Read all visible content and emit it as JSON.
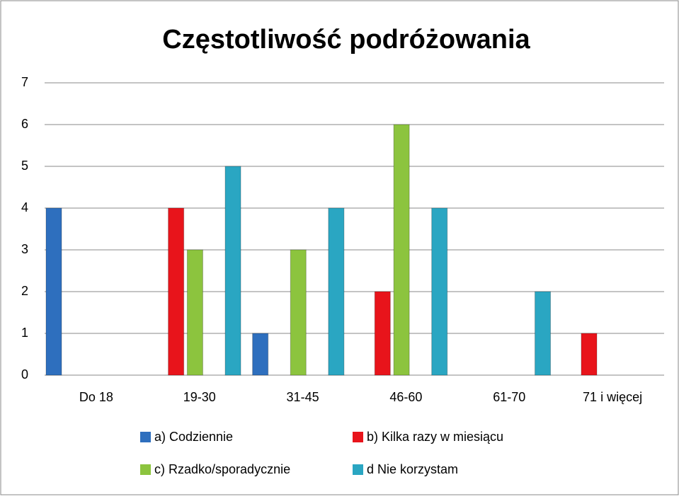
{
  "chart_data": {
    "type": "bar",
    "title": "Częstotliwość podróżowania",
    "categories": [
      "Do 18",
      "19-30",
      "31-45",
      "46-60",
      "61-70",
      "71 i więcej"
    ],
    "series": [
      {
        "name": "a) Codziennie",
        "color": "#2e6fbe",
        "values": [
          4,
          0,
          1,
          0,
          0,
          0
        ]
      },
      {
        "name": "b) Kilka razy w miesiącu",
        "color": "#e8141b",
        "values": [
          0,
          4,
          0,
          2,
          0,
          1
        ]
      },
      {
        "name": "c) Rzadko/sporadycznie",
        "color": "#8cc43e",
        "values": [
          0,
          3,
          3,
          6,
          0,
          0
        ]
      },
      {
        "name": "d Nie korzystam",
        "color": "#2aa6c2",
        "values": [
          0,
          5,
          4,
          4,
          2,
          0
        ]
      }
    ],
    "ylim": [
      0,
      7
    ],
    "yticks": [
      0,
      1,
      2,
      3,
      4,
      5,
      6,
      7
    ],
    "grid": true,
    "legend": "bottom"
  }
}
